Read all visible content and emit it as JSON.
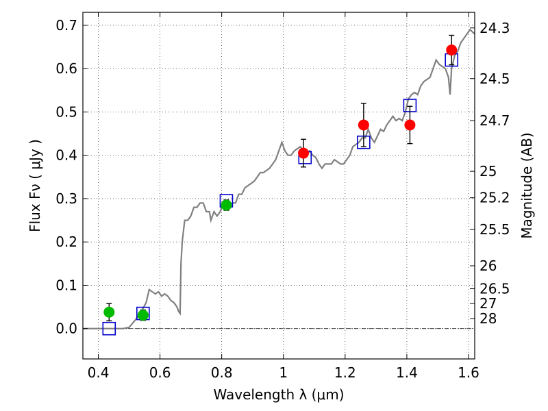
{
  "chart_data": {
    "type": "scatter",
    "xlabel": "Wavelength  λ (μm)",
    "ylabel": "Flux  Fν  ( μJy )",
    "y2label": "Magnitude (AB)",
    "xlim": [
      0.35,
      1.62
    ],
    "ylim": [
      -0.07,
      0.73
    ],
    "grid": true,
    "x_ticks": [
      0.4,
      0.6,
      0.8,
      1.0,
      1.2,
      1.4,
      1.6
    ],
    "x_tick_labels": [
      "0.4",
      "0.6",
      "0.8",
      "1",
      "1.2",
      "1.4",
      "1.6"
    ],
    "y_ticks": [
      0.0,
      0.1,
      0.2,
      0.3,
      0.4,
      0.5,
      0.6,
      0.7
    ],
    "y_tick_labels": [
      "0.0",
      "0.1",
      "0.2",
      "0.3",
      "0.4",
      "0.5",
      "0.6",
      "0.7"
    ],
    "y2_ticks": [
      {
        "flux": 0.694,
        "label": "24.3"
      },
      {
        "flux": 0.577,
        "label": "24.5"
      },
      {
        "flux": 0.48,
        "label": "24.7"
      },
      {
        "flux": 0.363,
        "label": "25"
      },
      {
        "flux": 0.302,
        "label": "25.2"
      },
      {
        "flux": 0.229,
        "label": "25.5"
      },
      {
        "flux": 0.145,
        "label": "26"
      },
      {
        "flux": 0.092,
        "label": "26.5"
      },
      {
        "flux": 0.058,
        "label": "27"
      },
      {
        "flux": 0.023,
        "label": "28"
      }
    ],
    "series": [
      {
        "marker": "line",
        "color": "#808080",
        "points": [
          [
            0.35,
            0.0
          ],
          [
            0.48,
            0.0
          ],
          [
            0.5,
            0.003
          ],
          [
            0.52,
            0.02
          ],
          [
            0.54,
            0.04
          ],
          [
            0.555,
            0.06
          ],
          [
            0.565,
            0.09
          ],
          [
            0.575,
            0.085
          ],
          [
            0.585,
            0.08
          ],
          [
            0.595,
            0.085
          ],
          [
            0.605,
            0.075
          ],
          [
            0.615,
            0.08
          ],
          [
            0.625,
            0.075
          ],
          [
            0.635,
            0.065
          ],
          [
            0.645,
            0.06
          ],
          [
            0.655,
            0.05
          ],
          [
            0.66,
            0.04
          ],
          [
            0.665,
            0.035
          ],
          [
            0.668,
            0.15
          ],
          [
            0.672,
            0.2
          ],
          [
            0.68,
            0.25
          ],
          [
            0.69,
            0.25
          ],
          [
            0.7,
            0.26
          ],
          [
            0.71,
            0.28
          ],
          [
            0.72,
            0.28
          ],
          [
            0.73,
            0.29
          ],
          [
            0.74,
            0.29
          ],
          [
            0.75,
            0.27
          ],
          [
            0.76,
            0.27
          ],
          [
            0.765,
            0.25
          ],
          [
            0.775,
            0.27
          ],
          [
            0.785,
            0.26
          ],
          [
            0.795,
            0.27
          ],
          [
            0.805,
            0.29
          ],
          [
            0.815,
            0.29
          ],
          [
            0.825,
            0.285
          ],
          [
            0.835,
            0.29
          ],
          [
            0.845,
            0.29
          ],
          [
            0.855,
            0.31
          ],
          [
            0.865,
            0.31
          ],
          [
            0.875,
            0.325
          ],
          [
            0.885,
            0.33
          ],
          [
            0.895,
            0.335
          ],
          [
            0.905,
            0.34
          ],
          [
            0.915,
            0.35
          ],
          [
            0.925,
            0.36
          ],
          [
            0.935,
            0.36
          ],
          [
            0.945,
            0.365
          ],
          [
            0.955,
            0.37
          ],
          [
            0.965,
            0.38
          ],
          [
            0.975,
            0.39
          ],
          [
            0.985,
            0.41
          ],
          [
            0.995,
            0.43
          ],
          [
            1.005,
            0.41
          ],
          [
            1.015,
            0.4
          ],
          [
            1.025,
            0.4
          ],
          [
            1.035,
            0.41
          ],
          [
            1.045,
            0.415
          ],
          [
            1.055,
            0.42
          ],
          [
            1.065,
            0.41
          ],
          [
            1.075,
            0.4
          ],
          [
            1.085,
            0.41
          ],
          [
            1.095,
            0.4
          ],
          [
            1.105,
            0.395
          ],
          [
            1.115,
            0.38
          ],
          [
            1.125,
            0.37
          ],
          [
            1.135,
            0.38
          ],
          [
            1.145,
            0.38
          ],
          [
            1.155,
            0.38
          ],
          [
            1.165,
            0.39
          ],
          [
            1.175,
            0.385
          ],
          [
            1.185,
            0.38
          ],
          [
            1.195,
            0.38
          ],
          [
            1.205,
            0.39
          ],
          [
            1.215,
            0.4
          ],
          [
            1.225,
            0.42
          ],
          [
            1.235,
            0.425
          ],
          [
            1.245,
            0.43
          ],
          [
            1.255,
            0.44
          ],
          [
            1.265,
            0.44
          ],
          [
            1.275,
            0.46
          ],
          [
            1.285,
            0.44
          ],
          [
            1.295,
            0.43
          ],
          [
            1.305,
            0.445
          ],
          [
            1.315,
            0.46
          ],
          [
            1.325,
            0.455
          ],
          [
            1.335,
            0.47
          ],
          [
            1.345,
            0.48
          ],
          [
            1.355,
            0.49
          ],
          [
            1.365,
            0.48
          ],
          [
            1.375,
            0.485
          ],
          [
            1.385,
            0.48
          ],
          [
            1.395,
            0.5
          ],
          [
            1.405,
            0.53
          ],
          [
            1.415,
            0.54
          ],
          [
            1.425,
            0.545
          ],
          [
            1.435,
            0.54
          ],
          [
            1.445,
            0.56
          ],
          [
            1.455,
            0.57
          ],
          [
            1.465,
            0.575
          ],
          [
            1.475,
            0.58
          ],
          [
            1.485,
            0.6
          ],
          [
            1.495,
            0.62
          ],
          [
            1.505,
            0.61
          ],
          [
            1.515,
            0.605
          ],
          [
            1.525,
            0.6
          ],
          [
            1.535,
            0.58
          ],
          [
            1.54,
            0.54
          ],
          [
            1.545,
            0.6
          ],
          [
            1.555,
            0.63
          ],
          [
            1.565,
            0.64
          ],
          [
            1.575,
            0.66
          ],
          [
            1.585,
            0.67
          ],
          [
            1.595,
            0.68
          ],
          [
            1.605,
            0.69
          ],
          [
            1.62,
            0.68
          ]
        ]
      },
      {
        "marker": "open-square",
        "color": "#0000cc",
        "points": [
          [
            0.435,
            0.0
          ],
          [
            0.545,
            0.035
          ],
          [
            0.815,
            0.295
          ],
          [
            1.07,
            0.395
          ],
          [
            1.26,
            0.43
          ],
          [
            1.41,
            0.515
          ],
          [
            1.545,
            0.62
          ]
        ]
      },
      {
        "marker": "filled-circle",
        "color": "#00bb00",
        "points": [
          [
            0.435,
            0.038
          ],
          [
            0.545,
            0.031
          ],
          [
            0.815,
            0.285
          ]
        ],
        "errors": [
          0.02,
          0.012,
          0.012
        ]
      },
      {
        "marker": "filled-circle",
        "color": "#ff0000",
        "points": [
          [
            1.065,
            0.405
          ],
          [
            1.26,
            0.47
          ],
          [
            1.41,
            0.47
          ],
          [
            1.545,
            0.643
          ]
        ],
        "errors": [
          0.032,
          0.05,
          0.043,
          0.034
        ]
      }
    ]
  }
}
